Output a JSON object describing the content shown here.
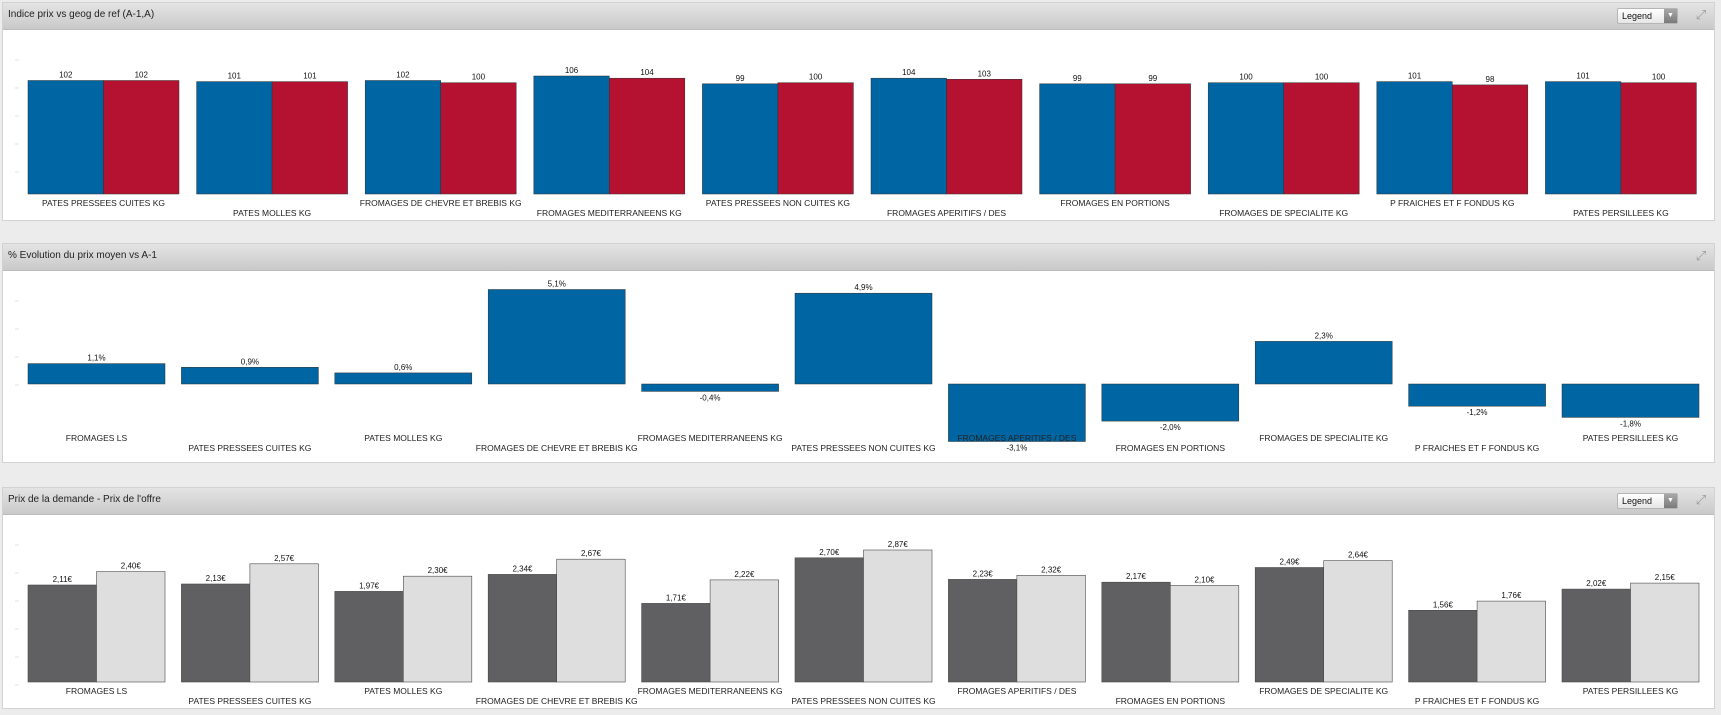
{
  "colors": {
    "blue": "#0065a3",
    "red": "#b51232",
    "dark_gray": "#606062",
    "light_gray": "#dedede"
  },
  "panels": [
    {
      "title": "Indice prix vs geog de ref (A-1,A)",
      "legend_label": "Legend",
      "has_legend": true
    },
    {
      "title": "% Evolution du prix moyen vs A-1",
      "legend_label": "",
      "has_legend": false
    },
    {
      "title": "Prix de la demande - Prix de l'offre",
      "legend_label": "Legend",
      "has_legend": true
    }
  ],
  "icons": {
    "expand": "expand-icon",
    "dropdown": "chevron-down-icon"
  },
  "chart_data": [
    {
      "type": "bar",
      "title": "Indice prix vs geog de ref (A-1,A)",
      "categories": [
        "PATES PRESSEES CUITES KG",
        "PATES MOLLES KG",
        "FROMAGES DE CHEVRE ET BREBIS KG",
        "FROMAGES MEDITERRANEENS KG",
        "PATES PRESSEES NON CUITES KG",
        "FROMAGES APERITIFS / DES",
        "FROMAGES EN PORTIONS",
        "FROMAGES DE SPECIALITE KG",
        "P FRAICHES ET F FONDUS KG",
        "PATES PERSILLEES KG"
      ],
      "series": [
        {
          "values": [
            102,
            101,
            102,
            106,
            99,
            104,
            99,
            100,
            101,
            101
          ],
          "labels": [
            "102",
            "101",
            "102",
            "106",
            "99",
            "104",
            "99",
            "100",
            "101",
            "101"
          ],
          "color": "#0065a3"
        },
        {
          "values": [
            102,
            101,
            100,
            104,
            100,
            103,
            99,
            100,
            98,
            100
          ],
          "labels": [
            "102",
            "101",
            "100",
            "104",
            "100",
            "103",
            "99",
            "100",
            "98",
            "100"
          ],
          "color": "#b51232"
        }
      ],
      "ylim": [
        0,
        106
      ],
      "grid": false,
      "legend": "dropdown top-right"
    },
    {
      "type": "bar",
      "title": "% Evolution du prix moyen vs A-1",
      "categories": [
        "FROMAGES LS",
        "PATES PRESSEES CUITES KG",
        "PATES MOLLES KG",
        "FROMAGES DE CHEVRE ET BREBIS KG",
        "FROMAGES MEDITERRANEENS KG",
        "PATES PRESSEES NON CUITES KG",
        "FROMAGES APERITIFS / DES",
        "FROMAGES EN PORTIONS",
        "FROMAGES DE SPECIALITE KG",
        "P FRAICHES ET F FONDUS KG",
        "PATES PERSILLEES KG"
      ],
      "series": [
        {
          "values": [
            1.1,
            0.9,
            0.6,
            5.1,
            -0.4,
            4.9,
            -3.1,
            -2.0,
            2.3,
            -1.2,
            -1.8
          ],
          "labels": [
            "1,1%",
            "0,9%",
            "0,6%",
            "5,1%",
            "-0,4%",
            "4,9%",
            "-3,1%",
            "-2,0%",
            "2,3%",
            "-1,2%",
            "-1,8%"
          ],
          "color": "#0065a3"
        }
      ],
      "ylim": [
        -3.1,
        5.1
      ],
      "grid": false
    },
    {
      "type": "bar",
      "title": "Prix de la demande - Prix de l'offre",
      "categories": [
        "FROMAGES LS",
        "PATES PRESSEES CUITES KG",
        "PATES MOLLES KG",
        "FROMAGES DE CHEVRE ET BREBIS KG",
        "FROMAGES MEDITERRANEENS KG",
        "PATES PRESSEES NON CUITES KG",
        "FROMAGES APERITIFS / DES",
        "FROMAGES EN PORTIONS",
        "FROMAGES DE SPECIALITE KG",
        "P FRAICHES ET F FONDUS KG",
        "PATES PERSILLEES KG"
      ],
      "series": [
        {
          "values": [
            2.11,
            2.13,
            1.97,
            2.34,
            1.71,
            2.7,
            2.23,
            2.17,
            2.49,
            1.56,
            2.02
          ],
          "labels": [
            "2,11€",
            "2,13€",
            "1,97€",
            "2,34€",
            "1,71€",
            "2,70€",
            "2,23€",
            "2,17€",
            "2,49€",
            "1,56€",
            "2,02€"
          ],
          "color": "#606062"
        },
        {
          "values": [
            2.4,
            2.57,
            2.3,
            2.67,
            2.22,
            2.87,
            2.32,
            2.1,
            2.64,
            1.76,
            2.15
          ],
          "labels": [
            "2,40€",
            "2,57€",
            "2,30€",
            "2,67€",
            "2,22€",
            "2,87€",
            "2,32€",
            "2,10€",
            "2,64€",
            "1,76€",
            "2,15€"
          ],
          "color": "#dedede"
        }
      ],
      "ylim": [
        0,
        2.87
      ],
      "grid": false,
      "legend": "dropdown top-right"
    }
  ]
}
